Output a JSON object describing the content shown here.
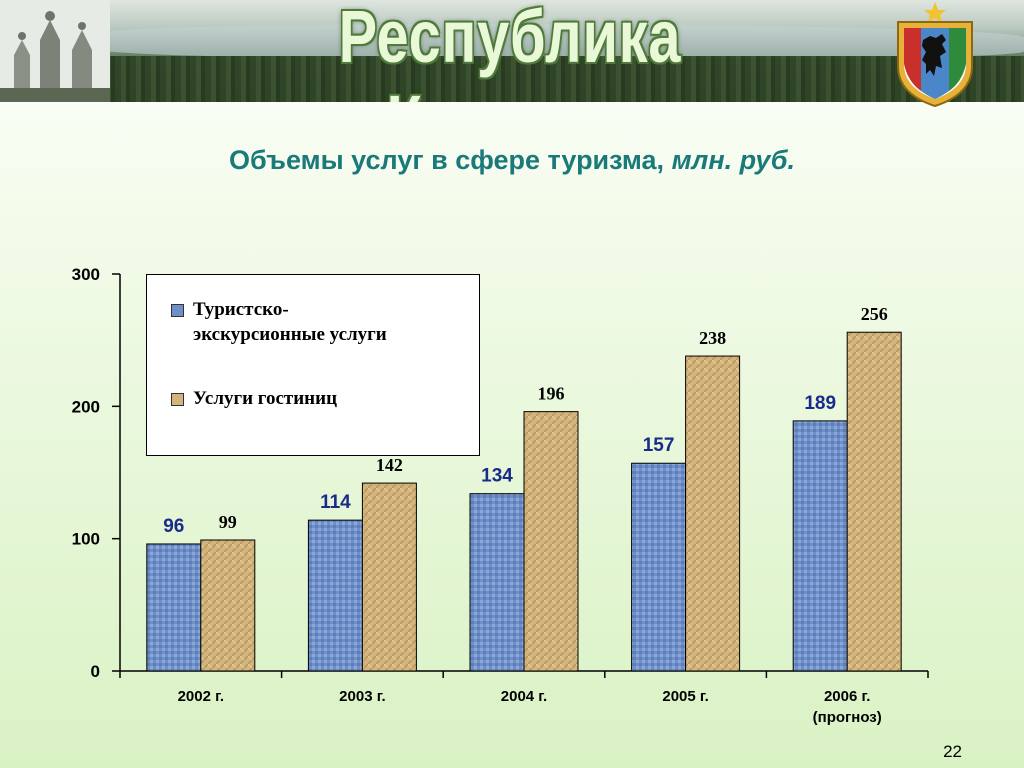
{
  "header": {
    "title": "Республика Карелия"
  },
  "slide": {
    "title_main": "Объемы услуг в сфере туризма,",
    "title_unit": "млн. руб.",
    "page_number": "22"
  },
  "colors": {
    "series_1": "#6f8fc8",
    "series_2": "#d2b47c",
    "title": "#1a7a7a",
    "axis": "#000000",
    "series_1_label": "#1a2b8a"
  },
  "chart_data": {
    "type": "bar",
    "categories": [
      "2002 г.",
      "2003 г.",
      "2004 г.",
      "2005 г.",
      "2006 г.\n(прогноз)"
    ],
    "category_lines": [
      [
        "2002 г."
      ],
      [
        "2003 г."
      ],
      [
        "2004 г."
      ],
      [
        "2005 г."
      ],
      [
        "2006 г.",
        "(прогноз)"
      ]
    ],
    "series": [
      {
        "name": "Туристско-экскурсионные услуги",
        "values": [
          96,
          114,
          134,
          157,
          189
        ]
      },
      {
        "name": "Услуги гостиниц",
        "values": [
          99,
          142,
          196,
          238,
          256
        ]
      }
    ],
    "yticks": [
      0,
      100,
      200,
      300
    ],
    "ylim": [
      0,
      300
    ],
    "xlabel": "",
    "ylabel": "",
    "grid": false,
    "legend_position": "top-left",
    "data_labels": true
  },
  "legend": {
    "item_1_line1": "Туристско-",
    "item_1_line2": "экскурсионные услуги",
    "item_2": "Услуги гостиниц"
  }
}
